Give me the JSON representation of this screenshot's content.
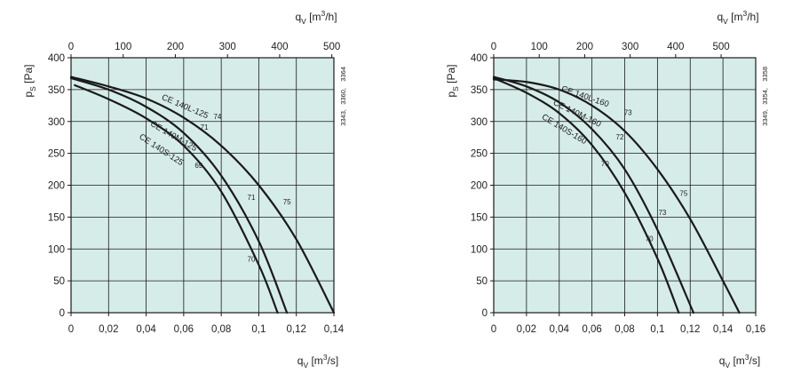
{
  "chart_data": [
    {
      "type": "line",
      "xlabel": {
        "base": "q",
        "sub": "V",
        "unit_pre": "[m",
        "unit_sup": "3",
        "unit_post": "/s]"
      },
      "ylabel": {
        "base": "p",
        "sub": "S",
        "unit": "[Pa]"
      },
      "top_label": {
        "base": "q",
        "sub": "V",
        "unit_pre": "[m",
        "unit_sup": "3",
        "unit_post": "/h]"
      },
      "xlim": [
        0,
        0.14
      ],
      "ylim": [
        0,
        400
      ],
      "top_lim": [
        0,
        504
      ],
      "x_ticks": [
        "0",
        "0,02",
        "0,04",
        "0,06",
        "0,08",
        "0,1",
        "0,12",
        "0,14"
      ],
      "y_ticks": [
        "0",
        "50",
        "100",
        "150",
        "200",
        "250",
        "300",
        "350",
        "400"
      ],
      "top_ticks": [
        "0",
        "100",
        "200",
        "300",
        "400",
        "500"
      ],
      "side_labels": [
        "3364",
        "3360,",
        "3343,"
      ],
      "grid": true,
      "background": "#d6ece8",
      "line_color": "#1a1a1a",
      "series": [
        {
          "name": "CE 140L-125",
          "x": [
            0,
            0.02,
            0.04,
            0.06,
            0.08,
            0.1,
            0.12,
            0.14
          ],
          "y": [
            370,
            355,
            336,
            306,
            262,
            200,
            115,
            0
          ],
          "efficiency_labels": [
            {
              "text": "74",
              "x": 0.078,
              "y": 304
            },
            {
              "text": "75",
              "x": 0.115,
              "y": 170
            }
          ]
        },
        {
          "name": "CE 140M-125",
          "x": [
            0,
            0.02,
            0.04,
            0.06,
            0.08,
            0.1,
            0.115
          ],
          "y": [
            368,
            350,
            323,
            282,
            215,
            112,
            0
          ],
          "efficiency_labels": [
            {
              "text": "71",
              "x": 0.071,
              "y": 287
            },
            {
              "text": "71",
              "x": 0.096,
              "y": 177
            }
          ]
        },
        {
          "name": "CE 140S-125",
          "x": [
            0.002,
            0.02,
            0.04,
            0.06,
            0.08,
            0.1,
            0.11
          ],
          "y": [
            357,
            335,
            305,
            262,
            190,
            75,
            0
          ],
          "efficiency_labels": [
            {
              "text": "69",
              "x": 0.068,
              "y": 227
            },
            {
              "text": "70",
              "x": 0.096,
              "y": 80
            }
          ]
        }
      ]
    },
    {
      "type": "line",
      "xlabel": {
        "base": "q",
        "sub": "V",
        "unit_pre": "[m",
        "unit_sup": "3",
        "unit_post": "/s]"
      },
      "ylabel": {
        "base": "p",
        "sub": "S",
        "unit": "[Pa]"
      },
      "top_label": {
        "base": "q",
        "sub": "V",
        "unit_pre": "[m",
        "unit_sup": "3",
        "unit_post": "/h]"
      },
      "xlim": [
        0,
        0.16
      ],
      "ylim": [
        0,
        400
      ],
      "top_lim": [
        0,
        576
      ],
      "x_ticks": [
        "0",
        "0,02",
        "0,04",
        "0,06",
        "0,08",
        "0,1",
        "0,12",
        "0,14",
        "0,16"
      ],
      "y_ticks": [
        "0",
        "50",
        "100",
        "150",
        "200",
        "250",
        "300",
        "350",
        "400"
      ],
      "top_ticks": [
        "0",
        "100",
        "200",
        "300",
        "400",
        "500"
      ],
      "side_labels": [
        "3358",
        "3354,",
        "3349,"
      ],
      "grid": true,
      "background": "#d6ece8",
      "line_color": "#1a1a1a",
      "series": [
        {
          "name": "CE 140L-160",
          "x": [
            0,
            0.02,
            0.04,
            0.06,
            0.08,
            0.1,
            0.12,
            0.14,
            0.15
          ],
          "y": [
            366,
            362,
            350,
            325,
            285,
            225,
            147,
            50,
            0
          ],
          "efficiency_labels": [
            {
              "text": "73",
              "x": 0.082,
              "y": 310
            },
            {
              "text": "75",
              "x": 0.116,
              "y": 183
            }
          ]
        },
        {
          "name": "CE 140M-160",
          "x": [
            0,
            0.02,
            0.04,
            0.06,
            0.08,
            0.1,
            0.122
          ],
          "y": [
            370,
            355,
            330,
            288,
            225,
            130,
            0
          ],
          "efficiency_labels": [
            {
              "text": "72",
              "x": 0.077,
              "y": 272
            },
            {
              "text": "73",
              "x": 0.103,
              "y": 153
            }
          ]
        },
        {
          "name": "CE 140S-160",
          "x": [
            0,
            0.02,
            0.04,
            0.06,
            0.08,
            0.1,
            0.113
          ],
          "y": [
            368,
            345,
            313,
            263,
            188,
            85,
            0
          ],
          "efficiency_labels": [
            {
              "text": "70",
              "x": 0.068,
              "y": 230
            },
            {
              "text": "70",
              "x": 0.095,
              "y": 112
            }
          ]
        }
      ]
    }
  ]
}
